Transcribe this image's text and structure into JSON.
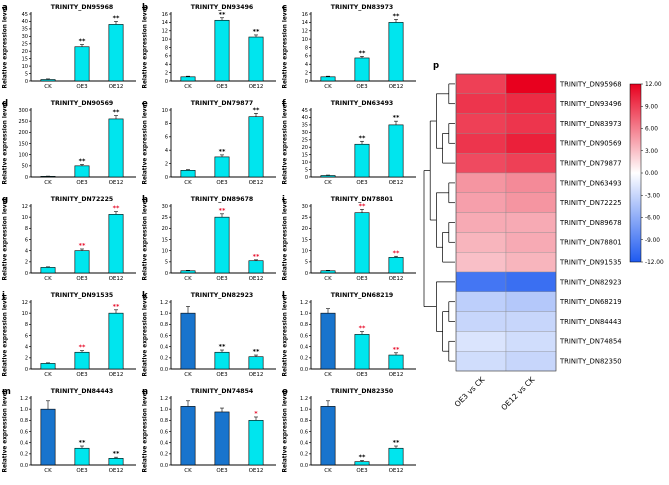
{
  "figure": {
    "ylabel": "Relative expression level",
    "background": "#ffffff"
  },
  "colors": {
    "cyan": "#00E5EE",
    "blue": "#1874CD",
    "bar_edge": "#000000",
    "heat_max": "#E8001E",
    "heat_mid": "#FFFFFF",
    "heat_min": "#1E5AF0"
  },
  "chart_data": [
    {
      "type": "bar",
      "panel": "a",
      "title": "TRINITY_DN95968",
      "categories": [
        "CK",
        "OE3",
        "OE12"
      ],
      "values": [
        1,
        23,
        38
      ],
      "errors": [
        0.4,
        1.5,
        2
      ],
      "significance": [
        "",
        "**",
        "**"
      ],
      "sig_color": "#000000",
      "bar_colors": [
        "cyan",
        "cyan",
        "cyan"
      ],
      "ylim": [
        0,
        45
      ],
      "yticks": [
        0,
        5,
        10,
        15,
        20,
        25,
        30,
        35,
        40,
        45
      ],
      "ytick_labels": [
        "0",
        "5",
        "10",
        "15",
        "20",
        "25",
        "30",
        "35",
        "40",
        "45"
      ]
    },
    {
      "type": "bar",
      "panel": "b",
      "title": "TRINITY_DN93496",
      "categories": [
        "CK",
        "OE3",
        "OE12"
      ],
      "values": [
        1,
        14.5,
        10.5
      ],
      "errors": [
        0.15,
        0.6,
        0.5
      ],
      "significance": [
        "",
        "**",
        "**"
      ],
      "sig_color": "#000000",
      "bar_colors": [
        "cyan",
        "cyan",
        "cyan"
      ],
      "ylim": [
        0,
        16
      ],
      "yticks": [
        0,
        2,
        4,
        6,
        8,
        10,
        12,
        14,
        16
      ],
      "ytick_labels": [
        "0",
        "2",
        "4",
        "6",
        "8",
        "10",
        "12",
        "14",
        "16"
      ]
    },
    {
      "type": "bar",
      "panel": "c",
      "title": "TRINITY_DN83973",
      "categories": [
        "CK",
        "OE3",
        "OE12"
      ],
      "values": [
        1,
        5.5,
        14
      ],
      "errors": [
        0.15,
        0.4,
        0.7
      ],
      "significance": [
        "",
        "**",
        "**"
      ],
      "sig_color": "#000000",
      "bar_colors": [
        "cyan",
        "cyan",
        "cyan"
      ],
      "ylim": [
        0,
        16
      ],
      "yticks": [
        0,
        2,
        4,
        6,
        8,
        10,
        12,
        14,
        16
      ],
      "ytick_labels": [
        "0",
        "2",
        "4",
        "6",
        "8",
        "10",
        "12",
        "14",
        "16"
      ]
    },
    {
      "type": "bar",
      "panel": "d",
      "title": "TRINITY_DN90569",
      "categories": [
        "CK",
        "OE3",
        "OE12"
      ],
      "values": [
        3,
        50,
        260
      ],
      "errors": [
        1,
        6,
        15
      ],
      "significance": [
        "",
        "**",
        "**"
      ],
      "sig_color": "#000000",
      "bar_colors": [
        "cyan",
        "cyan",
        "cyan"
      ],
      "ylim": [
        0,
        300
      ],
      "yticks": [
        0,
        50,
        100,
        150,
        200,
        250,
        300
      ],
      "ytick_labels": [
        "0",
        "50",
        "100",
        "150",
        "200",
        "250",
        "300"
      ]
    },
    {
      "type": "bar",
      "panel": "e",
      "title": "TRINITY_DN79877",
      "categories": [
        "CK",
        "OE3",
        "OE12"
      ],
      "values": [
        1,
        3,
        9
      ],
      "errors": [
        0.1,
        0.3,
        0.5
      ],
      "significance": [
        "",
        "**",
        "**"
      ],
      "sig_color": "#000000",
      "bar_colors": [
        "cyan",
        "cyan",
        "cyan"
      ],
      "ylim": [
        0,
        10
      ],
      "yticks": [
        0,
        2,
        4,
        6,
        8,
        10
      ],
      "ytick_labels": [
        "0",
        "2",
        "4",
        "6",
        "8",
        "10"
      ]
    },
    {
      "type": "bar",
      "panel": "f",
      "title": "TRINITY_DN63493",
      "categories": [
        "CK",
        "OE3",
        "OE12"
      ],
      "values": [
        1,
        22,
        35
      ],
      "errors": [
        0.3,
        2,
        2.5
      ],
      "significance": [
        "",
        "**",
        "**"
      ],
      "sig_color": "#000000",
      "bar_colors": [
        "cyan",
        "cyan",
        "cyan"
      ],
      "ylim": [
        0,
        45
      ],
      "yticks": [
        0,
        5,
        10,
        15,
        20,
        25,
        30,
        35,
        40,
        45
      ],
      "ytick_labels": [
        "0",
        "5",
        "10",
        "15",
        "20",
        "25",
        "30",
        "35",
        "40",
        "45"
      ]
    },
    {
      "type": "bar",
      "panel": "g",
      "title": "TRINITY_DN72225",
      "categories": [
        "CK",
        "OE3",
        "OE12"
      ],
      "values": [
        1,
        4,
        10.5
      ],
      "errors": [
        0.1,
        0.3,
        0.5
      ],
      "significance": [
        "",
        "**",
        "**"
      ],
      "sig_color": "#E8112D",
      "bar_colors": [
        "cyan",
        "cyan",
        "cyan"
      ],
      "ylim": [
        0,
        12
      ],
      "yticks": [
        0,
        2,
        4,
        6,
        8,
        10,
        12
      ],
      "ytick_labels": [
        "0",
        "2",
        "4",
        "6",
        "8",
        "10",
        "12"
      ]
    },
    {
      "type": "bar",
      "panel": "h",
      "title": "TRINITY_DN89678",
      "categories": [
        "CK",
        "OE3",
        "OE12"
      ],
      "values": [
        1,
        25,
        5.5
      ],
      "errors": [
        0.2,
        1.5,
        0.4
      ],
      "significance": [
        "",
        "**",
        "**"
      ],
      "sig_color": "#E8112D",
      "bar_colors": [
        "cyan",
        "cyan",
        "cyan"
      ],
      "ylim": [
        0,
        30
      ],
      "yticks": [
        0,
        5,
        10,
        15,
        20,
        25,
        30
      ],
      "ytick_labels": [
        "0",
        "5",
        "10",
        "15",
        "20",
        "25",
        "30"
      ]
    },
    {
      "type": "bar",
      "panel": "i",
      "title": "TRINITY_DN78801",
      "categories": [
        "CK",
        "OE3",
        "OE12"
      ],
      "values": [
        1,
        27,
        7
      ],
      "errors": [
        0.2,
        1.5,
        0.5
      ],
      "significance": [
        "",
        "**",
        "**"
      ],
      "sig_color": "#E8112D",
      "bar_colors": [
        "cyan",
        "cyan",
        "cyan"
      ],
      "ylim": [
        0,
        30
      ],
      "yticks": [
        0,
        5,
        10,
        15,
        20,
        25,
        30
      ],
      "ytick_labels": [
        "0",
        "5",
        "10",
        "15",
        "20",
        "25",
        "30"
      ]
    },
    {
      "type": "bar",
      "panel": "j",
      "title": "TRINITY_DN91535",
      "categories": [
        "CK",
        "OE3",
        "OE12"
      ],
      "values": [
        1,
        3,
        10
      ],
      "errors": [
        0.1,
        0.3,
        0.6
      ],
      "significance": [
        "",
        "**",
        "**"
      ],
      "sig_color": "#E8112D",
      "bar_colors": [
        "cyan",
        "cyan",
        "cyan"
      ],
      "ylim": [
        0,
        12
      ],
      "yticks": [
        0,
        2,
        4,
        6,
        8,
        10,
        12
      ],
      "ytick_labels": [
        "0",
        "2",
        "4",
        "6",
        "8",
        "10",
        "12"
      ]
    },
    {
      "type": "bar",
      "panel": "k",
      "title": "TRINITY_DN82923",
      "categories": [
        "CK",
        "OE3",
        "OE12"
      ],
      "values": [
        1.0,
        0.3,
        0.22
      ],
      "errors": [
        0.12,
        0.04,
        0.03
      ],
      "significance": [
        "",
        "**",
        "**"
      ],
      "sig_color": "#000000",
      "bar_colors": [
        "blue",
        "cyan",
        "cyan"
      ],
      "ylim": [
        0,
        1.2
      ],
      "yticks": [
        0,
        0.2,
        0.4,
        0.6,
        0.8,
        1.0,
        1.2
      ],
      "ytick_labels": [
        "0.0",
        "0.2",
        "0.4",
        "0.6",
        "0.8",
        "1.0",
        "1.2"
      ]
    },
    {
      "type": "bar",
      "panel": "l",
      "title": "TRINITY_DN68219",
      "categories": [
        "CK",
        "OE3",
        "OE12"
      ],
      "values": [
        1.0,
        0.62,
        0.25
      ],
      "errors": [
        0.08,
        0.05,
        0.04
      ],
      "significance": [
        "",
        "**",
        "**"
      ],
      "sig_color": "#E8112D",
      "bar_colors": [
        "blue",
        "cyan",
        "cyan"
      ],
      "ylim": [
        0,
        1.2
      ],
      "yticks": [
        0,
        0.2,
        0.4,
        0.6,
        0.8,
        1.0,
        1.2
      ],
      "ytick_labels": [
        "0.0",
        "0.2",
        "0.4",
        "0.6",
        "0.8",
        "1.0",
        "1.2"
      ]
    },
    {
      "type": "bar",
      "panel": "m",
      "title": "TRINITY_DN84443",
      "categories": [
        "CK",
        "OE3",
        "OE12"
      ],
      "values": [
        1.0,
        0.3,
        0.12
      ],
      "errors": [
        0.15,
        0.04,
        0.02
      ],
      "significance": [
        "",
        "**",
        "**"
      ],
      "sig_color": "#000000",
      "bar_colors": [
        "blue",
        "cyan",
        "cyan"
      ],
      "ylim": [
        0,
        1.2
      ],
      "yticks": [
        0,
        0.2,
        0.4,
        0.6,
        0.8,
        1.0,
        1.2
      ],
      "ytick_labels": [
        "0.0",
        "0.2",
        "0.4",
        "0.6",
        "0.8",
        "1.0",
        "1.2"
      ]
    },
    {
      "type": "bar",
      "panel": "n",
      "title": "TRINITY_DN74854",
      "categories": [
        "CK",
        "OE3",
        "OE12"
      ],
      "values": [
        1.05,
        0.95,
        0.8
      ],
      "errors": [
        0.1,
        0.07,
        0.06
      ],
      "significance": [
        "",
        "",
        "*"
      ],
      "sig_color": "#E8112D",
      "bar_colors": [
        "blue",
        "blue",
        "cyan"
      ],
      "ylim": [
        0,
        1.2
      ],
      "yticks": [
        0,
        0.2,
        0.4,
        0.6,
        0.8,
        1.0,
        1.2
      ],
      "ytick_labels": [
        "0.0",
        "0.2",
        "0.4",
        "0.6",
        "0.8",
        "1.0",
        "1.2"
      ]
    },
    {
      "type": "bar",
      "panel": "o",
      "title": "TRINITY_DN82350",
      "categories": [
        "CK",
        "OE3",
        "OE12"
      ],
      "values": [
        1.05,
        0.06,
        0.3
      ],
      "errors": [
        0.1,
        0.02,
        0.04
      ],
      "significance": [
        "",
        "**",
        "**"
      ],
      "sig_color": "#000000",
      "bar_colors": [
        "blue",
        "cyan",
        "cyan"
      ],
      "ylim": [
        0,
        1.2
      ],
      "yticks": [
        0,
        0.2,
        0.4,
        0.6,
        0.8,
        1.0,
        1.2
      ],
      "ytick_labels": [
        "0.0",
        "0.2",
        "0.4",
        "0.6",
        "0.8",
        "1.0",
        "1.2"
      ]
    },
    {
      "type": "heatmap",
      "panel": "p",
      "columns": [
        "OE3 vs CK",
        "OE12 vs CK"
      ],
      "rows": [
        {
          "gene": "TRINITY_DN95968",
          "values": [
            9.0,
            12.0
          ]
        },
        {
          "gene": "TRINITY_DN93496",
          "values": [
            9.5,
            10.0
          ]
        },
        {
          "gene": "TRINITY_DN83973",
          "values": [
            9.0,
            9.5
          ]
        },
        {
          "gene": "TRINITY_DN90569",
          "values": [
            9.5,
            10.5
          ]
        },
        {
          "gene": "TRINITY_DN79877",
          "values": [
            8.5,
            9.0
          ]
        },
        {
          "gene": "TRINITY_DN63493",
          "values": [
            5.0,
            5.5
          ]
        },
        {
          "gene": "TRINITY_DN72225",
          "values": [
            4.5,
            5.0
          ]
        },
        {
          "gene": "TRINITY_DN89678",
          "values": [
            4.0,
            4.0
          ]
        },
        {
          "gene": "TRINITY_DN78801",
          "values": [
            3.5,
            4.0
          ]
        },
        {
          "gene": "TRINITY_DN91535",
          "values": [
            3.0,
            3.5
          ]
        },
        {
          "gene": "TRINITY_DN82923",
          "values": [
            -10.0,
            -10.5
          ]
        },
        {
          "gene": "TRINITY_DN68219",
          "values": [
            -3.5,
            -4.0
          ]
        },
        {
          "gene": "TRINITY_DN84443",
          "values": [
            -3.0,
            -3.0
          ]
        },
        {
          "gene": "TRINITY_DN74854",
          "values": [
            -2.0,
            -2.5
          ]
        },
        {
          "gene": "TRINITY_DN82350",
          "values": [
            -2.5,
            -3.0
          ]
        }
      ],
      "scale": [
        -12,
        12
      ],
      "colorbar_ticks": [
        "12.00",
        "9.00",
        "6.00",
        "3.00",
        "0.00",
        "-3.00",
        "-6.00",
        "-9.00",
        "-12.00"
      ],
      "dendrogram": [
        [
          [
            [
              0,
              1
            ],
            [
              [
                2,
                3
              ],
              4
            ]
          ],
          [
            [
              5,
              6
            ],
            [
              [
                7,
                8
              ],
              9
            ]
          ]
        ],
        [
          10,
          [
            [
              11,
              12
            ],
            [
              13,
              14
            ]
          ]
        ]
      ]
    }
  ]
}
